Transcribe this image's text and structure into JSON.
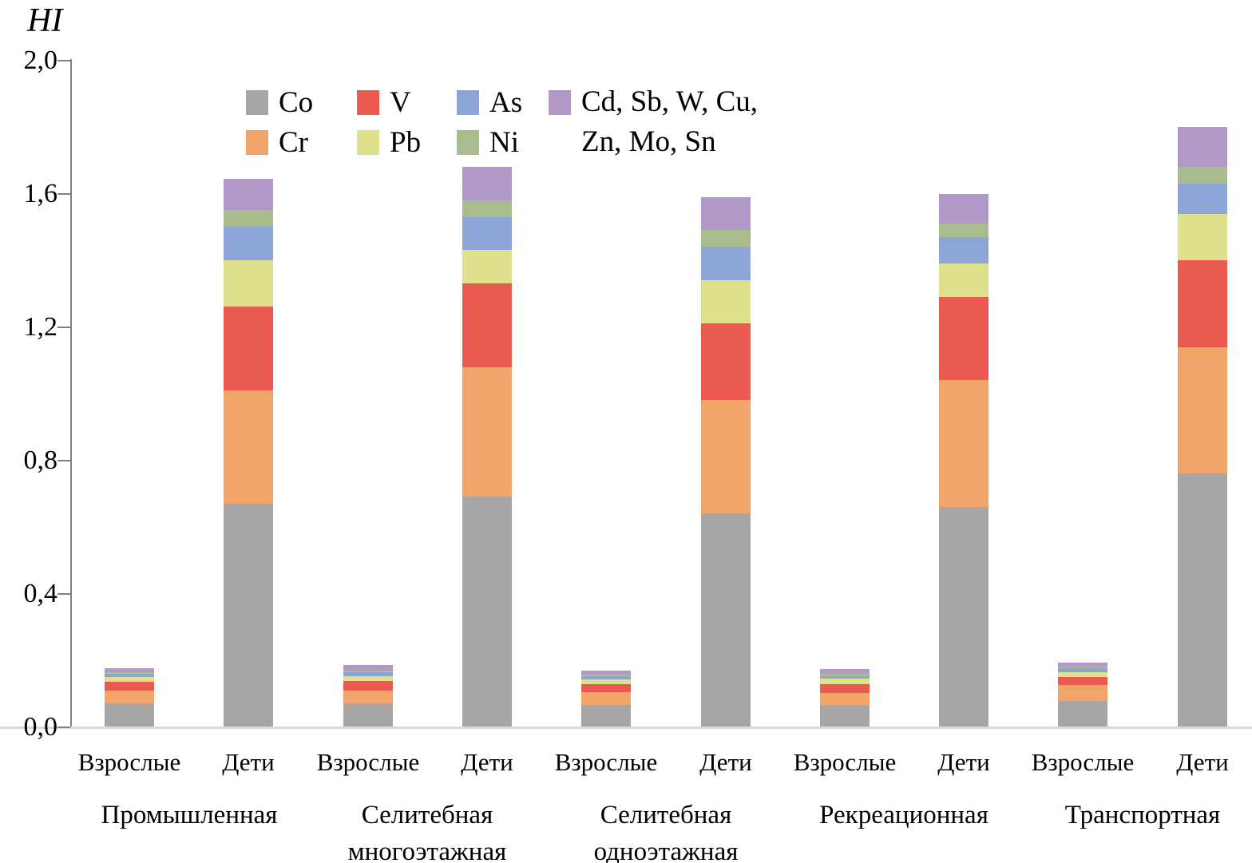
{
  "chart_data": {
    "type": "bar",
    "subtype": "stacked-vertical",
    "ylabel": "HI",
    "ylim": [
      0,
      2.0
    ],
    "grid": "off",
    "legend_position": "top-center",
    "decimal_separator": ",",
    "ytick_values": [
      0,
      0.4,
      0.8,
      1.2,
      1.6,
      2.0
    ],
    "ytick_labels": [
      "0,0",
      "0,4",
      "0,8",
      "1,2",
      "1,6",
      "2,0"
    ],
    "stack_order": [
      "Co",
      "Cr",
      "V",
      "Pb",
      "As",
      "Ni",
      "Other"
    ],
    "series_colors": {
      "Co": "#a6a6a6",
      "Cr": "#f2a569",
      "V": "#eb5a50",
      "Pb": "#dfe08b",
      "As": "#8da4d6",
      "Ni": "#a8bc8e",
      "Other": "#b297c9"
    },
    "legend": {
      "col1_row1": "Co",
      "col1_row2": "Cr",
      "col2_row1": "V",
      "col2_row2": "Pb",
      "col3_row1": "As",
      "col3_row2": "Ni",
      "col4_line1": "Cd, Sb, W, Cu,",
      "col4_line2": "Zn, Mo, Sn"
    },
    "groups": [
      {
        "label_lines": [
          "Промышленная"
        ],
        "bars": [
          {
            "label": "Взрослые",
            "values": {
              "Co": 0.07,
              "Cr": 0.04,
              "V": 0.025,
              "Pb": 0.015,
              "As": 0.01,
              "Ni": 0.005,
              "Other": 0.01
            }
          },
          {
            "label": "Дети",
            "values": {
              "Co": 0.67,
              "Cr": 0.34,
              "V": 0.25,
              "Pb": 0.14,
              "As": 0.1,
              "Ni": 0.05,
              "Other": 0.095
            }
          }
        ]
      },
      {
        "label_lines": [
          "Селитебная",
          "многоэтажная"
        ],
        "bars": [
          {
            "label": "Взрослые",
            "values": {
              "Co": 0.07,
              "Cr": 0.04,
              "V": 0.028,
              "Pb": 0.015,
              "As": 0.012,
              "Ni": 0.005,
              "Other": 0.015
            }
          },
          {
            "label": "Дети",
            "values": {
              "Co": 0.69,
              "Cr": 0.39,
              "V": 0.25,
              "Pb": 0.1,
              "As": 0.1,
              "Ni": 0.05,
              "Other": 0.1
            }
          }
        ]
      },
      {
        "label_lines": [
          "Селитебная",
          "одноэтажная"
        ],
        "bars": [
          {
            "label": "Взрослые",
            "values": {
              "Co": 0.067,
              "Cr": 0.036,
              "V": 0.026,
              "Pb": 0.014,
              "As": 0.01,
              "Ni": 0.004,
              "Other": 0.013
            }
          },
          {
            "label": "Дети",
            "values": {
              "Co": 0.64,
              "Cr": 0.34,
              "V": 0.23,
              "Pb": 0.13,
              "As": 0.1,
              "Ni": 0.05,
              "Other": 0.1
            }
          }
        ]
      },
      {
        "label_lines": [
          "Рекреационная"
        ],
        "bars": [
          {
            "label": "Взрослые",
            "values": {
              "Co": 0.067,
              "Cr": 0.034,
              "V": 0.026,
              "Pb": 0.017,
              "As": 0.009,
              "Ni": 0.006,
              "Other": 0.014
            }
          },
          {
            "label": "Дети",
            "values": {
              "Co": 0.66,
              "Cr": 0.38,
              "V": 0.25,
              "Pb": 0.1,
              "As": 0.08,
              "Ni": 0.04,
              "Other": 0.09
            }
          }
        ]
      },
      {
        "label_lines": [
          "Транспортная"
        ],
        "bars": [
          {
            "label": "Взрослые",
            "values": {
              "Co": 0.077,
              "Cr": 0.048,
              "V": 0.024,
              "Pb": 0.014,
              "As": 0.012,
              "Ni": 0.007,
              "Other": 0.012
            }
          },
          {
            "label": "Дети",
            "values": {
              "Co": 0.76,
              "Cr": 0.38,
              "V": 0.26,
              "Pb": 0.14,
              "As": 0.09,
              "Ni": 0.05,
              "Other": 0.12
            }
          }
        ]
      }
    ]
  }
}
